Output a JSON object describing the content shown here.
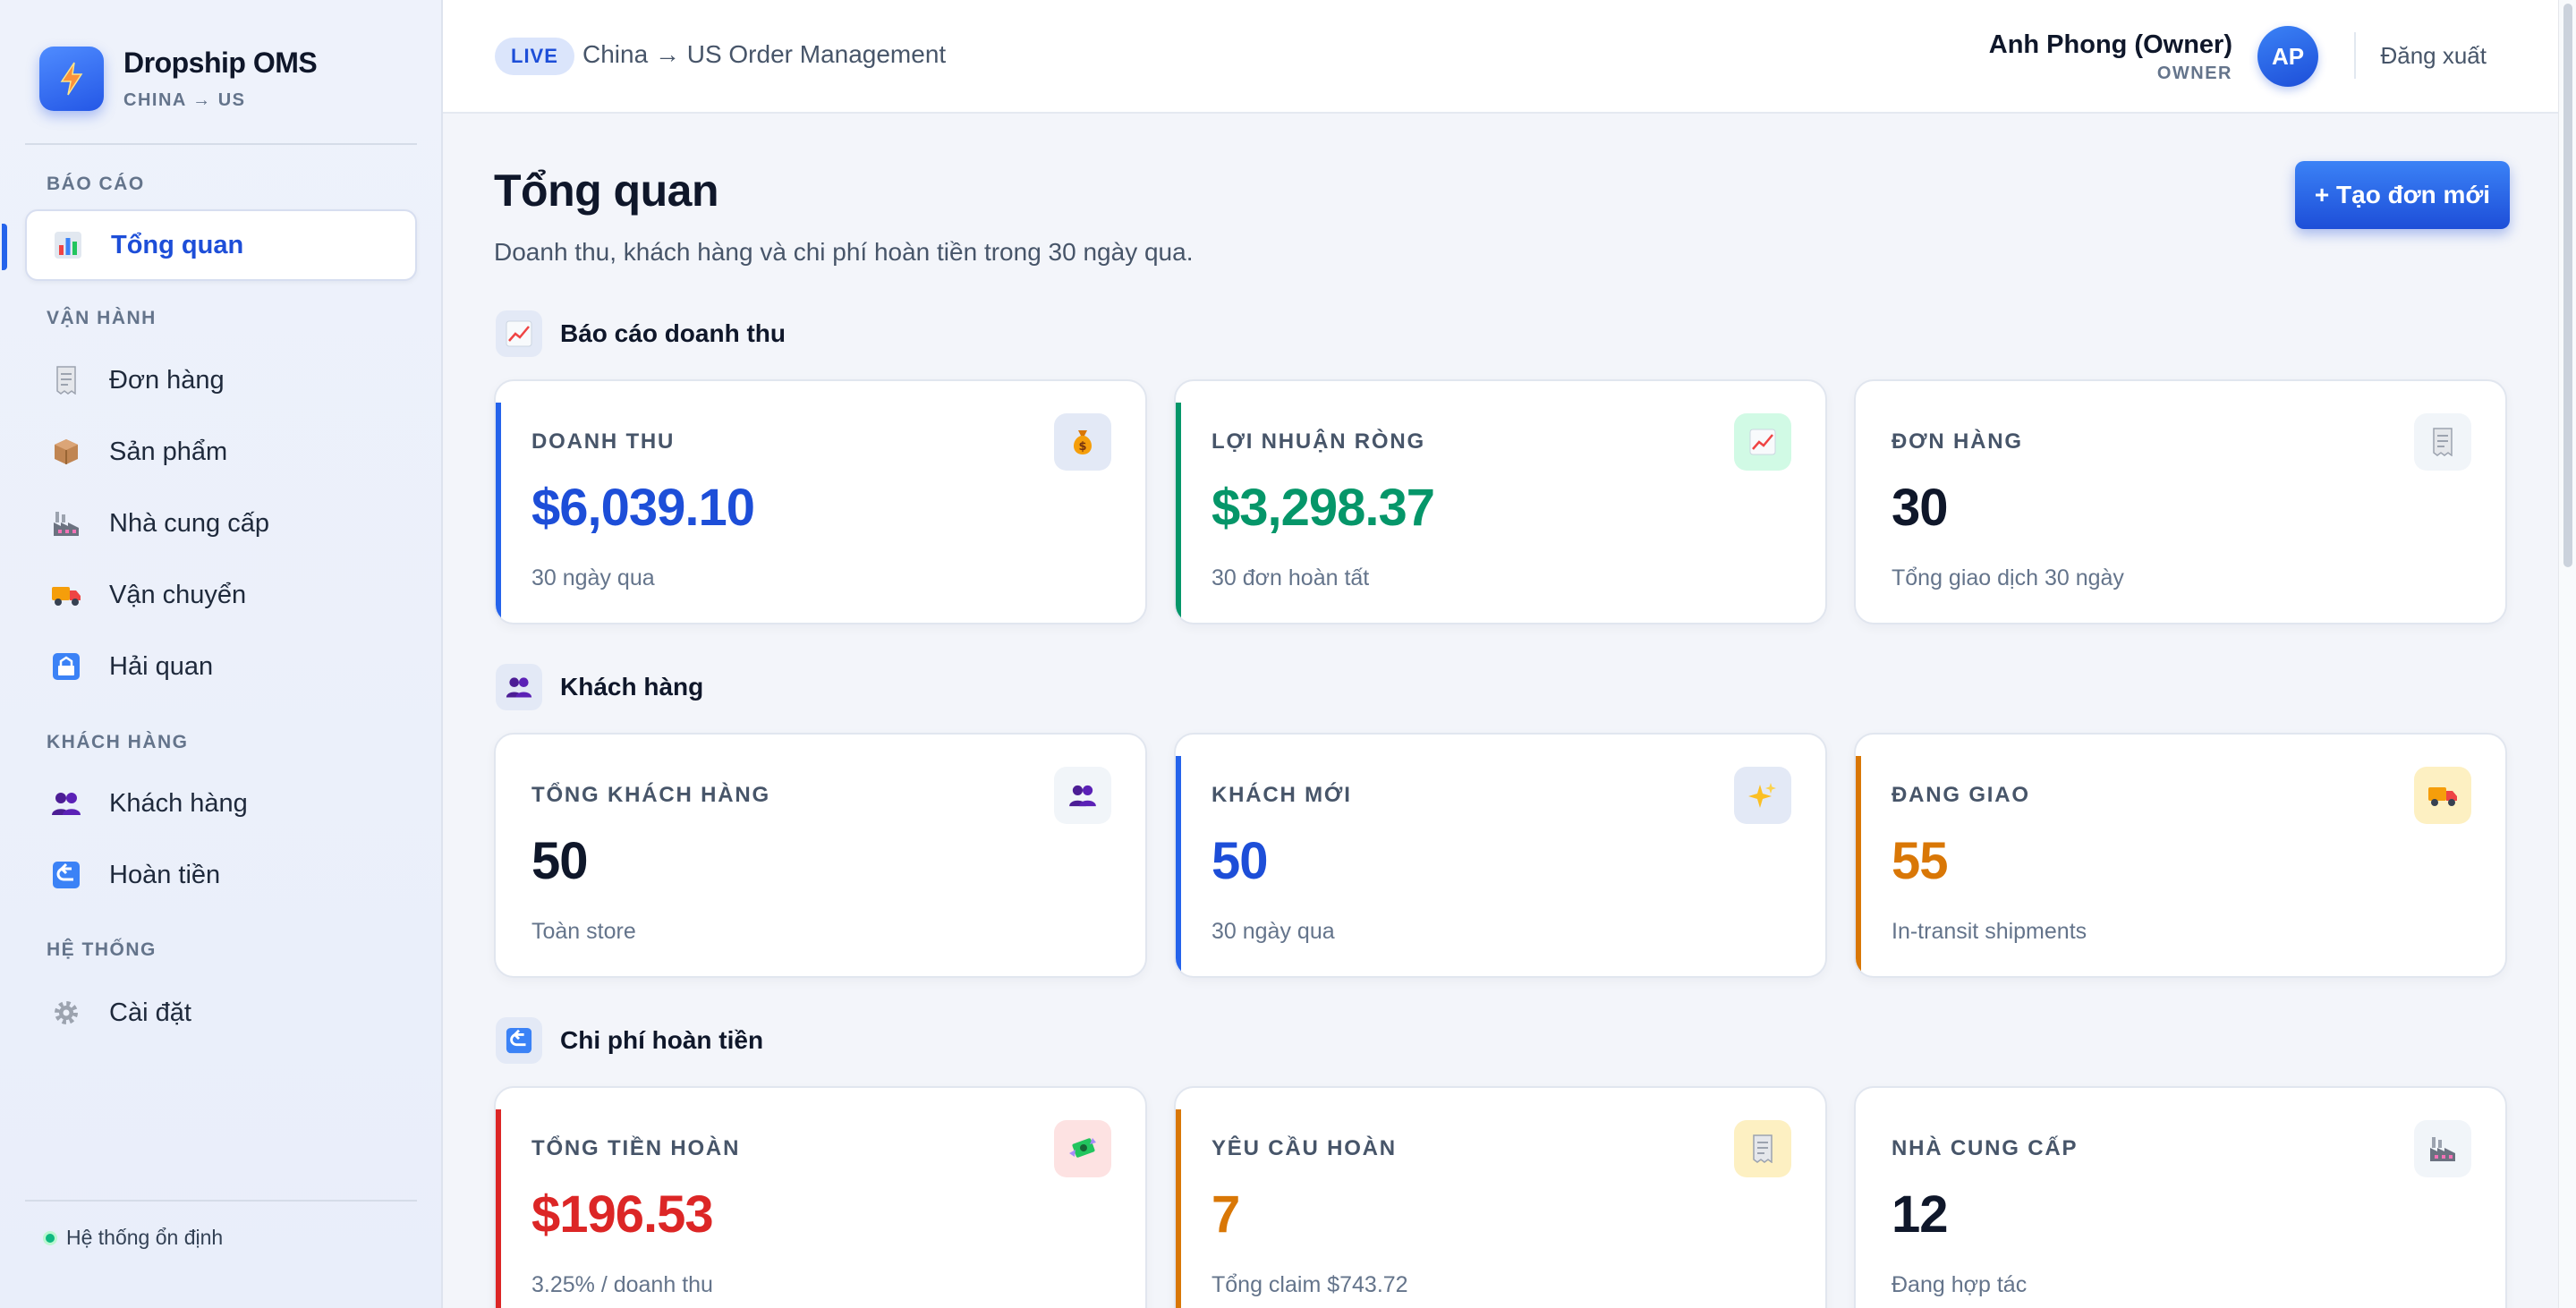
{
  "brand": {
    "name": "Dropship OMS",
    "subtitle": "CHINA → US",
    "logo_icon": "bolt-icon",
    "accent": "#2563eb"
  },
  "sidebar": {
    "sections": [
      {
        "title": "BÁO CÁO"
      },
      {
        "title": "VẬN HÀNH"
      },
      {
        "title": "KHÁCH HÀNG"
      },
      {
        "title": "HỆ THỐNG"
      }
    ],
    "items": [
      {
        "label": "Tổng quan",
        "icon": "bar-chart-icon",
        "active": true
      },
      {
        "label": "Đơn hàng",
        "icon": "receipt-icon"
      },
      {
        "label": "Sản phẩm",
        "icon": "package-icon"
      },
      {
        "label": "Nhà cung cấp",
        "icon": "factory-icon"
      },
      {
        "label": "Vận chuyển",
        "icon": "truck-icon"
      },
      {
        "label": "Hải quan",
        "icon": "customs-icon"
      },
      {
        "label": "Khách hàng",
        "icon": "users-icon"
      },
      {
        "label": "Hoàn tiền",
        "icon": "return-arrow-icon"
      },
      {
        "label": "Cài đặt",
        "icon": "gear-icon"
      }
    ],
    "status": "Hệ thống ổn định",
    "status_color": "#10b981"
  },
  "topbar": {
    "badge": "LIVE",
    "title": "China → US Order Management",
    "user_name": "Anh Phong (Owner)",
    "user_role": "OWNER",
    "avatar_initials": "AP",
    "logout_label": "Đăng xuất"
  },
  "page": {
    "title": "Tổng quan",
    "subtitle": "Doanh thu, khách hàng và chi phí hoàn tiền trong 30 ngày qua.",
    "create_button": "+ Tạo đơn mới"
  },
  "sections": [
    {
      "title": "Báo cáo doanh thu",
      "icon": "trend-up-icon",
      "cards": [
        {
          "label": "DOANH THU",
          "value": "$6,039.10",
          "sub": "30 ngày qua",
          "color": "#1d4ed8",
          "accent": "#2563eb",
          "icon": "money-bag-icon",
          "icon_bg": "#e3e9f6"
        },
        {
          "label": "LỢI NHUẬN RÒNG",
          "value": "$3,298.37",
          "sub": "30 đơn hoàn tất",
          "color": "#059669",
          "accent": "#059669",
          "icon": "trend-up-icon",
          "icon_bg": "#d1fae5"
        },
        {
          "label": "ĐƠN HÀNG",
          "value": "30",
          "sub": "Tổng giao dịch 30 ngày",
          "color": "#0f172a",
          "accent": "",
          "icon": "receipt-icon",
          "icon_bg": "#f1f5f9"
        }
      ]
    },
    {
      "title": "Khách hàng",
      "icon": "users-icon",
      "cards": [
        {
          "label": "TỔNG KHÁCH HÀNG",
          "value": "50",
          "sub": "Toàn store",
          "color": "#0f172a",
          "accent": "",
          "icon": "users-icon",
          "icon_bg": "#f1f5f9"
        },
        {
          "label": "KHÁCH MỚI",
          "value": "50",
          "sub": "30 ngày qua",
          "color": "#1d4ed8",
          "accent": "#2563eb",
          "icon": "sparkles-icon",
          "icon_bg": "#e3e9f6"
        },
        {
          "label": "ĐANG GIAO",
          "value": "55",
          "sub": "In-transit shipments",
          "color": "#d97706",
          "accent": "#d97706",
          "icon": "truck-icon",
          "icon_bg": "#fdf0c2"
        }
      ]
    },
    {
      "title": "Chi phí hoàn tiền",
      "icon": "return-arrow-icon",
      "cards": [
        {
          "label": "TỔNG TIỀN HOÀN",
          "value": "$196.53",
          "sub": "3.25% / doanh thu",
          "color": "#dc2626",
          "accent": "#dc2626",
          "icon": "money-wings-icon",
          "icon_bg": "#fde2e2"
        },
        {
          "label": "YÊU CẦU HOÀN",
          "value": "7",
          "sub": "Tổng claim $743.72",
          "color": "#d97706",
          "accent": "#d97706",
          "icon": "receipt-icon",
          "icon_bg": "#fdf0c2"
        },
        {
          "label": "NHÀ CUNG CẤP",
          "value": "12",
          "sub": "Đang hợp tác",
          "color": "#0f172a",
          "accent": "",
          "icon": "factory-icon",
          "icon_bg": "#f1f5f9"
        }
      ]
    }
  ]
}
